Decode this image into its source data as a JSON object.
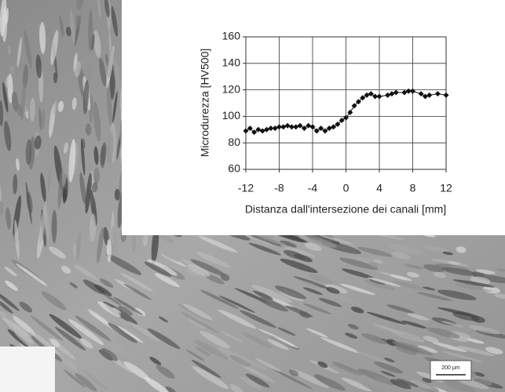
{
  "chart_data": {
    "type": "line",
    "xlabel": "Distanza dall'intersezione dei canali [mm]",
    "ylabel": "Microdurezza [HV500]",
    "x": [
      -12,
      -11.5,
      -11,
      -10.5,
      -10,
      -9.5,
      -9,
      -8.5,
      -8,
      -7.5,
      -7,
      -6.5,
      -6,
      -5.5,
      -5,
      -4.5,
      -4,
      -3.5,
      -3,
      -2.5,
      -2,
      -1.5,
      -1,
      -0.5,
      0,
      0.5,
      1,
      1.5,
      2,
      2.5,
      3,
      3.5,
      4,
      5,
      5.5,
      6,
      7,
      7.5,
      8,
      9,
      9.5,
      10,
      11,
      12
    ],
    "values": [
      89,
      91,
      88,
      90,
      89,
      90,
      91,
      91,
      92,
      92,
      93,
      92,
      92,
      93,
      91,
      93,
      92,
      89,
      91,
      89,
      91,
      92,
      94,
      97,
      99,
      103,
      108,
      111,
      114,
      116,
      117,
      115,
      115,
      116,
      117,
      118,
      118,
      119,
      119,
      117,
      115,
      116,
      117,
      116
    ],
    "color": "#111111",
    "xlim": [
      -12,
      12
    ],
    "xticks": [
      -12,
      -8,
      -4,
      0,
      4,
      8,
      12
    ],
    "ylim": [
      60,
      160
    ],
    "yticks": [
      60,
      80,
      100,
      120,
      140,
      160
    ],
    "grid": true,
    "scale_bar": "200 µm"
  }
}
